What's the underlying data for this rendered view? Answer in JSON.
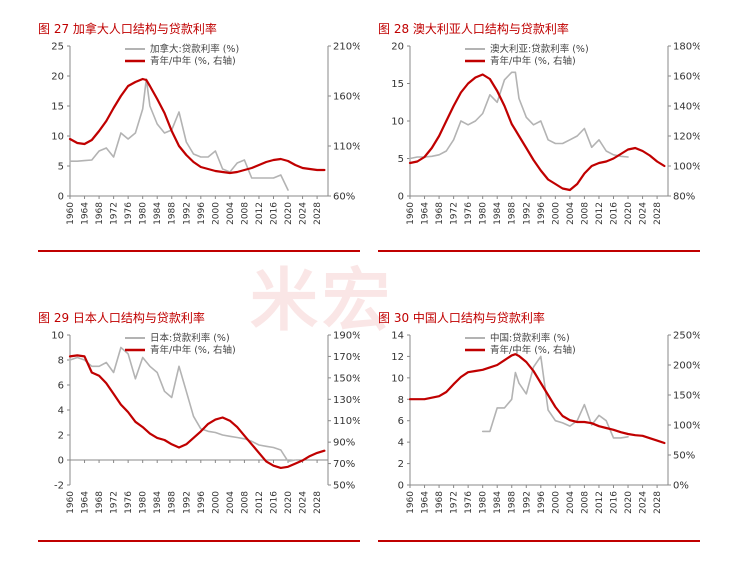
{
  "watermark": "米宏",
  "colors": {
    "red": "#c00000",
    "gray": "#b3b3b3",
    "axis": "#888888"
  },
  "chart_data": [
    {
      "type": "line",
      "title": "图 27 加拿大人口结构与贷款利率",
      "x": [
        1960,
        1962,
        1964,
        1966,
        1968,
        1970,
        1972,
        1974,
        1976,
        1978,
        1980,
        1981,
        1982,
        1984,
        1986,
        1988,
        1990,
        1992,
        1994,
        1996,
        1998,
        2000,
        2002,
        2004,
        2006,
        2008,
        2010,
        2012,
        2014,
        2016,
        2018,
        2020,
        2022,
        2024,
        2026,
        2028,
        2030
      ],
      "xticks": [
        "1960",
        "1964",
        "1968",
        "1972",
        "1976",
        "1980",
        "1984",
        "1988",
        "1992",
        "1996",
        "2000",
        "2004",
        "2008",
        "2012",
        "2016",
        "2020",
        "2024",
        "2028"
      ],
      "xlim": [
        1960,
        2031
      ],
      "ylim": [
        0,
        25
      ],
      "yticks": [
        "0",
        "5",
        "10",
        "15",
        "20",
        "25"
      ],
      "y2lim": [
        60,
        210
      ],
      "y2ticks": [
        "60%",
        "110%",
        "160%",
        "210%"
      ],
      "series": [
        {
          "name": "加拿大:贷款利率 (%)",
          "axis": "left",
          "color": "#b3b3b3",
          "values": [
            5.8,
            5.8,
            5.9,
            6.0,
            7.5,
            8.0,
            6.5,
            10.5,
            9.5,
            10.5,
            14.5,
            19.5,
            15.0,
            12.0,
            10.5,
            11.0,
            14.0,
            9.0,
            7.0,
            6.5,
            6.5,
            7.5,
            4.5,
            4.0,
            5.5,
            6.0,
            3.0,
            3.0,
            3.0,
            3.0,
            3.5,
            1.0,
            null,
            null,
            null,
            null,
            null
          ]
        },
        {
          "name": "青年/中年 (%, 右轴)",
          "axis": "right",
          "color": "#c00000",
          "values": [
            117,
            113,
            112,
            116,
            125,
            135,
            148,
            160,
            170,
            174,
            177,
            176,
            170,
            157,
            143,
            125,
            110,
            101,
            94,
            89,
            87,
            85,
            84,
            83,
            84,
            86,
            88,
            91,
            94,
            96,
            97,
            95,
            91,
            88,
            87,
            86,
            86
          ]
        }
      ]
    },
    {
      "type": "line",
      "title": "图 28 澳大利亚人口结构与贷款利率",
      "x": [
        1960,
        1962,
        1964,
        1966,
        1968,
        1970,
        1972,
        1974,
        1976,
        1978,
        1980,
        1982,
        1984,
        1986,
        1988,
        1989,
        1990,
        1992,
        1994,
        1996,
        1998,
        2000,
        2002,
        2004,
        2006,
        2008,
        2010,
        2012,
        2014,
        2016,
        2018,
        2020,
        2022,
        2024,
        2026,
        2028,
        2030
      ],
      "xticks": [
        "1960",
        "1964",
        "1968",
        "1972",
        "1976",
        "1980",
        "1984",
        "1988",
        "1992",
        "1996",
        "2000",
        "2004",
        "2008",
        "2012",
        "2016",
        "2020",
        "2024",
        "2028"
      ],
      "xlim": [
        1960,
        2031
      ],
      "ylim": [
        0,
        20
      ],
      "yticks": [
        "0",
        "5",
        "10",
        "15",
        "20"
      ],
      "y2lim": [
        80,
        180
      ],
      "y2ticks": [
        "80%",
        "100%",
        "120%",
        "140%",
        "160%",
        "180%"
      ],
      "series": [
        {
          "name": "澳大利亚:贷款利率 (%)",
          "axis": "left",
          "color": "#b3b3b3",
          "values": [
            5.0,
            5.2,
            5.2,
            5.3,
            5.5,
            6.0,
            7.5,
            10.0,
            9.5,
            10.0,
            11.0,
            13.5,
            12.5,
            15.5,
            16.5,
            16.5,
            13.0,
            10.5,
            9.5,
            10.0,
            7.5,
            7.0,
            7.0,
            7.5,
            8.0,
            9.0,
            6.5,
            7.5,
            6.0,
            5.5,
            5.3,
            5.2,
            null,
            null,
            null,
            null,
            null
          ]
        },
        {
          "name": "青年/中年 (%, 右轴)",
          "axis": "right",
          "color": "#c00000",
          "values": [
            102,
            103,
            106,
            112,
            120,
            130,
            140,
            149,
            155,
            159,
            161,
            158,
            150,
            140,
            128,
            124,
            120,
            112,
            104,
            97,
            91,
            88,
            85,
            84,
            88,
            95,
            100,
            102,
            103,
            105,
            108,
            111,
            112,
            110,
            107,
            103,
            100
          ]
        }
      ]
    },
    {
      "type": "line",
      "title": "图 29 日本人口结构与贷款利率",
      "x": [
        1960,
        1962,
        1964,
        1966,
        1968,
        1970,
        1972,
        1974,
        1976,
        1978,
        1980,
        1982,
        1984,
        1986,
        1988,
        1990,
        1992,
        1994,
        1996,
        1998,
        2000,
        2002,
        2004,
        2006,
        2008,
        2010,
        2012,
        2014,
        2016,
        2018,
        2020,
        2022,
        2024,
        2026,
        2028,
        2030
      ],
      "xticks": [
        "1960",
        "1964",
        "1968",
        "1972",
        "1976",
        "1980",
        "1984",
        "1988",
        "1992",
        "1996",
        "2000",
        "2004",
        "2008",
        "2012",
        "2016",
        "2020",
        "2024",
        "2028"
      ],
      "xlim": [
        1960,
        2031
      ],
      "ylim": [
        -2,
        10
      ],
      "yticks": [
        "-2",
        "0",
        "2",
        "4",
        "6",
        "8",
        "10"
      ],
      "y2lim": [
        50,
        190
      ],
      "y2ticks": [
        "50%",
        "70%",
        "90%",
        "110%",
        "130%",
        "150%",
        "170%",
        "190%"
      ],
      "series": [
        {
          "name": "日本:贷款利率 (%)",
          "axis": "left",
          "color": "#b3b3b3",
          "values": [
            8.0,
            8.2,
            8.0,
            7.5,
            7.5,
            7.8,
            7.0,
            9.0,
            8.5,
            6.5,
            8.2,
            7.5,
            7.0,
            5.5,
            5.0,
            7.5,
            5.5,
            3.5,
            2.5,
            2.3,
            2.2,
            2.0,
            1.9,
            1.8,
            1.7,
            1.5,
            1.2,
            1.1,
            1.0,
            0.8,
            -0.1,
            0.0,
            null,
            null,
            null,
            null
          ]
        },
        {
          "name": "青年/中年 (%, 右轴)",
          "axis": "right",
          "color": "#c00000",
          "values": [
            170,
            171,
            170,
            155,
            152,
            145,
            135,
            125,
            118,
            109,
            104,
            98,
            94,
            92,
            88,
            85,
            88,
            94,
            100,
            107,
            111,
            113,
            110,
            104,
            96,
            88,
            80,
            72,
            68,
            66,
            67,
            70,
            73,
            77,
            80,
            82
          ]
        }
      ]
    },
    {
      "type": "line",
      "title": "图 30 中国人口结构与贷款利率",
      "x": [
        1960,
        1964,
        1968,
        1970,
        1972,
        1974,
        1976,
        1978,
        1980,
        1982,
        1984,
        1986,
        1988,
        1989,
        1990,
        1992,
        1994,
        1996,
        1998,
        2000,
        2002,
        2004,
        2006,
        2008,
        2010,
        2012,
        2014,
        2016,
        2018,
        2020,
        2022,
        2024,
        2026,
        2028,
        2030
      ],
      "xticks": [
        "1960",
        "1964",
        "1968",
        "1972",
        "1976",
        "1980",
        "1984",
        "1988",
        "1992",
        "1996",
        "2000",
        "2004",
        "2008",
        "2012",
        "2016",
        "2020",
        "2024",
        "2028"
      ],
      "xlim": [
        1960,
        2031
      ],
      "ylim": [
        0,
        14
      ],
      "yticks": [
        "0",
        "2",
        "4",
        "6",
        "8",
        "10",
        "12",
        "14"
      ],
      "y2lim": [
        0,
        250
      ],
      "y2ticks": [
        "0%",
        "50%",
        "100%",
        "150%",
        "200%",
        "250%"
      ],
      "series": [
        {
          "name": "中国:贷款利率 (%)",
          "axis": "left",
          "color": "#b3b3b3",
          "values": [
            null,
            null,
            null,
            null,
            null,
            null,
            null,
            null,
            5.0,
            5.0,
            7.2,
            7.2,
            8.0,
            10.5,
            9.5,
            8.5,
            11.0,
            12.0,
            7.0,
            6.0,
            5.8,
            5.5,
            6.0,
            7.5,
            5.6,
            6.5,
            6.0,
            4.4,
            4.4,
            4.5,
            null,
            null,
            null,
            null,
            null
          ]
        },
        {
          "name": "青年/中年 (%, 右轴)",
          "axis": "right",
          "color": "#c00000",
          "values": [
            143,
            143,
            148,
            155,
            168,
            180,
            188,
            190,
            192,
            196,
            200,
            208,
            216,
            218,
            215,
            205,
            190,
            170,
            150,
            130,
            115,
            108,
            105,
            105,
            103,
            98,
            95,
            92,
            88,
            85,
            83,
            82,
            78,
            74,
            70
          ]
        }
      ]
    }
  ]
}
